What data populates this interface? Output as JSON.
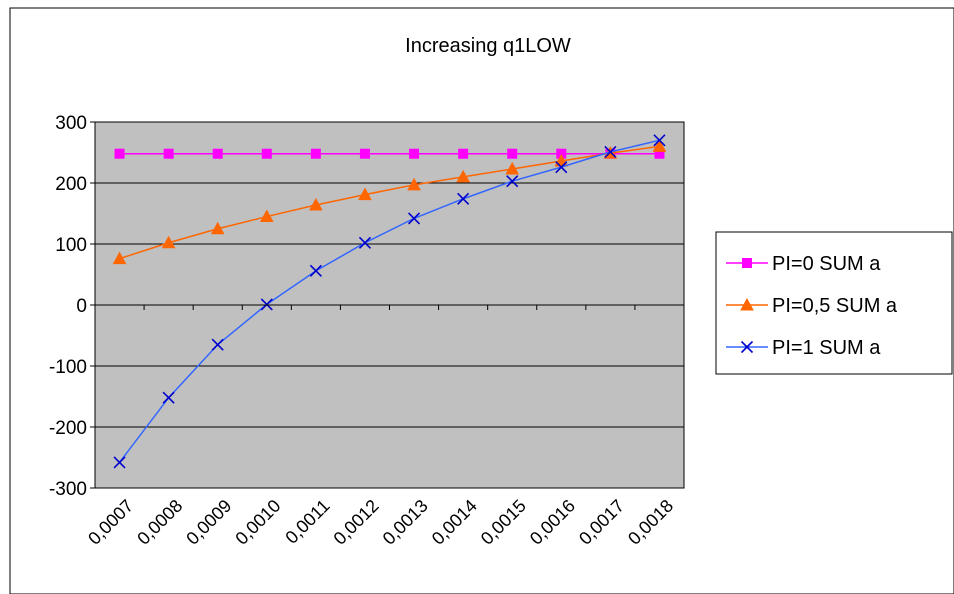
{
  "chart_data": {
    "type": "line",
    "title": "Increasing q1LOW",
    "xlabel": "",
    "ylabel": "",
    "categories": [
      "0,0007",
      "0,0008",
      "0,0009",
      "0,0010",
      "0,0011",
      "0,0012",
      "0,0013",
      "0,0014",
      "0,0015",
      "0,0016",
      "0,0017",
      "0,0018"
    ],
    "ylim": [
      -300,
      300
    ],
    "yticks": [
      "300",
      "200",
      "100",
      "0",
      "-100",
      "-200",
      "-300"
    ],
    "grid": true,
    "legend": "right",
    "series": [
      {
        "name": "PI=0 SUM a",
        "color": "#FF00FF",
        "marker": "square",
        "values": [
          248,
          248,
          248,
          248,
          248,
          248,
          248,
          248,
          248,
          248,
          248,
          248
        ]
      },
      {
        "name": "PI=0,5 SUM a",
        "color": "#FF6600",
        "marker": "triangle",
        "values": [
          76,
          102,
          125,
          145,
          164,
          181,
          197,
          210,
          223,
          236,
          249,
          260
        ]
      },
      {
        "name": "PI=1 SUM a",
        "color": "#0000CC",
        "line_color": "#3366FF",
        "marker": "x",
        "values": [
          -258,
          -152,
          -65,
          1,
          56,
          102,
          142,
          174,
          203,
          226,
          251,
          270
        ]
      }
    ],
    "colors": {
      "plot_background": "#C0C0C0",
      "gridline": "#000000",
      "frame": "#000000"
    }
  }
}
